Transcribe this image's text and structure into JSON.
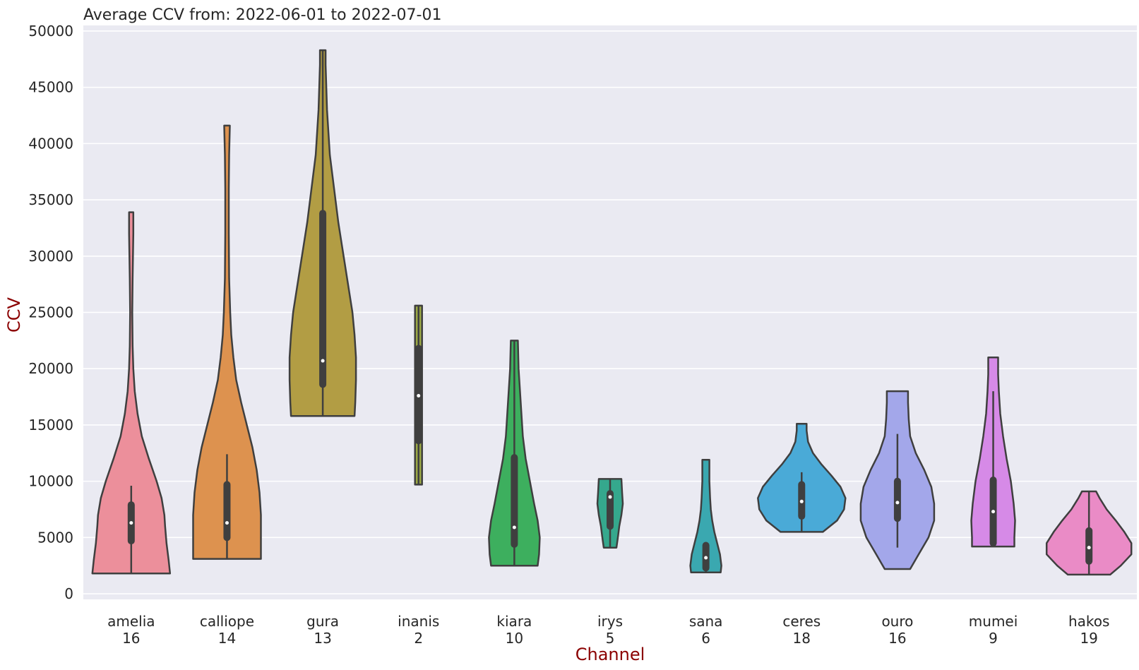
{
  "chart_data": {
    "type": "violin",
    "title": "Average CCV from: 2022-06-01 to 2022-07-01",
    "xlabel": "Channel",
    "ylabel": "CCV",
    "ylim": [
      -500,
      50500
    ],
    "yticks": [
      0,
      5000,
      10000,
      15000,
      20000,
      25000,
      30000,
      35000,
      40000,
      45000,
      50000
    ],
    "grid": true,
    "axis_label_color": "#8b0000",
    "background": "#eaeaf2",
    "violins": [
      {
        "name": "amelia",
        "count": "16",
        "color": "#ec8f9b",
        "min": 1800,
        "q1": 4700,
        "median": 6300,
        "q3": 7900,
        "whisker_low": 1800,
        "whisker_high": 9600,
        "max": 33900,
        "profile": [
          [
            1800,
            55
          ],
          [
            3000,
            53
          ],
          [
            4500,
            50
          ],
          [
            6000,
            48
          ],
          [
            7000,
            47
          ],
          [
            8500,
            43
          ],
          [
            10000,
            36
          ],
          [
            12000,
            25
          ],
          [
            14000,
            15
          ],
          [
            16000,
            9
          ],
          [
            18000,
            5
          ],
          [
            20000,
            3
          ],
          [
            22000,
            2
          ],
          [
            25000,
            1.5
          ],
          [
            28000,
            2
          ],
          [
            30000,
            2.5
          ],
          [
            32000,
            3
          ],
          [
            33900,
            3
          ]
        ]
      },
      {
        "name": "calliope",
        "count": "14",
        "color": "#dd924f",
        "min": 3100,
        "q1": 5000,
        "median": 6300,
        "q3": 9700,
        "whisker_low": 3100,
        "whisker_high": 12400,
        "max": 41600,
        "profile": [
          [
            3100,
            48
          ],
          [
            5000,
            48
          ],
          [
            7000,
            48
          ],
          [
            9000,
            46
          ],
          [
            11000,
            42
          ],
          [
            13000,
            36
          ],
          [
            15000,
            28
          ],
          [
            17000,
            20
          ],
          [
            19000,
            13
          ],
          [
            21000,
            9
          ],
          [
            23000,
            6
          ],
          [
            25000,
            4.5
          ],
          [
            28000,
            3
          ],
          [
            32000,
            2.5
          ],
          [
            36000,
            2.5
          ],
          [
            39000,
            3
          ],
          [
            41600,
            4
          ]
        ]
      },
      {
        "name": "gura",
        "count": "13",
        "color": "#b29d44",
        "min": 15800,
        "q1": 18600,
        "median": 20700,
        "q3": 33800,
        "whisker_low": 15800,
        "whisker_high": 48300,
        "max": 48300,
        "profile": [
          [
            15800,
            45
          ],
          [
            17000,
            46
          ],
          [
            19000,
            47
          ],
          [
            21000,
            47
          ],
          [
            23000,
            45
          ],
          [
            25000,
            42
          ],
          [
            27000,
            37
          ],
          [
            29000,
            32
          ],
          [
            31000,
            27
          ],
          [
            33000,
            22
          ],
          [
            35000,
            18
          ],
          [
            37000,
            14
          ],
          [
            39000,
            10
          ],
          [
            41000,
            8
          ],
          [
            43000,
            6
          ],
          [
            45000,
            5
          ],
          [
            47000,
            4
          ],
          [
            48300,
            4
          ]
        ]
      },
      {
        "name": "inanis",
        "count": "2",
        "color": "#9ba845",
        "min": 9700,
        "q1": 13600,
        "median": 17600,
        "q3": 21800,
        "whisker_low": 9700,
        "whisker_high": 25600,
        "max": 25600,
        "profile": [
          [
            9700,
            5
          ],
          [
            12000,
            5
          ],
          [
            15000,
            5
          ],
          [
            18000,
            5
          ],
          [
            21000,
            5
          ],
          [
            24000,
            5
          ],
          [
            25600,
            5
          ]
        ]
      },
      {
        "name": "kiara",
        "count": "10",
        "color": "#3daf5e",
        "min": 2500,
        "q1": 4400,
        "median": 5900,
        "q3": 12100,
        "whisker_low": 2500,
        "whisker_high": 22500,
        "max": 22500,
        "profile": [
          [
            2500,
            33
          ],
          [
            3500,
            35
          ],
          [
            5000,
            36
          ],
          [
            6500,
            33
          ],
          [
            8000,
            28
          ],
          [
            10000,
            22
          ],
          [
            12000,
            16
          ],
          [
            14000,
            12
          ],
          [
            16000,
            10
          ],
          [
            18000,
            8
          ],
          [
            20000,
            6
          ],
          [
            22500,
            5
          ]
        ]
      },
      {
        "name": "irys",
        "count": "5",
        "color": "#35a88d",
        "min": 4100,
        "q1": 6000,
        "median": 8600,
        "q3": 8900,
        "whisker_low": 4100,
        "whisker_high": 10200,
        "max": 10200,
        "profile": [
          [
            4100,
            9
          ],
          [
            5000,
            11
          ],
          [
            6000,
            13
          ],
          [
            7000,
            16
          ],
          [
            8000,
            18
          ],
          [
            9000,
            17
          ],
          [
            10200,
            16
          ]
        ]
      },
      {
        "name": "sana",
        "count": "6",
        "color": "#3aa8b0",
        "min": 1900,
        "q1": 2300,
        "median": 3200,
        "q3": 4300,
        "whisker_low": 1900,
        "whisker_high": 4300,
        "max": 11900,
        "profile": [
          [
            1900,
            21
          ],
          [
            2500,
            22
          ],
          [
            3500,
            20
          ],
          [
            4500,
            16
          ],
          [
            5500,
            12
          ],
          [
            6500,
            9
          ],
          [
            7500,
            7
          ],
          [
            8500,
            6
          ],
          [
            10000,
            5
          ],
          [
            11900,
            5
          ]
        ]
      },
      {
        "name": "ceres",
        "count": "18",
        "color": "#4aaad7",
        "min": 5500,
        "q1": 6900,
        "median": 8200,
        "q3": 9700,
        "whisker_low": 5500,
        "whisker_high": 10800,
        "max": 15100,
        "profile": [
          [
            5500,
            30
          ],
          [
            6500,
            50
          ],
          [
            7500,
            60
          ],
          [
            8500,
            62
          ],
          [
            9500,
            55
          ],
          [
            10500,
            42
          ],
          [
            11500,
            28
          ],
          [
            12500,
            16
          ],
          [
            13500,
            9
          ],
          [
            14500,
            7
          ],
          [
            15100,
            7
          ]
        ]
      },
      {
        "name": "ouro",
        "count": "16",
        "color": "#a3a7ea",
        "min": 2200,
        "q1": 6700,
        "median": 8100,
        "q3": 10000,
        "whisker_low": 4100,
        "whisker_high": 14200,
        "max": 18000,
        "profile": [
          [
            2200,
            18
          ],
          [
            3500,
            30
          ],
          [
            5000,
            44
          ],
          [
            6500,
            52
          ],
          [
            8000,
            52
          ],
          [
            9500,
            48
          ],
          [
            11000,
            38
          ],
          [
            12500,
            26
          ],
          [
            14000,
            18
          ],
          [
            15500,
            16
          ],
          [
            17000,
            15
          ],
          [
            18000,
            15
          ]
        ]
      },
      {
        "name": "mumei",
        "count": "9",
        "color": "#d68ae7",
        "min": 4200,
        "q1": 4500,
        "median": 7300,
        "q3": 10100,
        "whisker_low": 4200,
        "whisker_high": 18000,
        "max": 21000,
        "profile": [
          [
            4200,
            30
          ],
          [
            5000,
            30
          ],
          [
            6500,
            31
          ],
          [
            8000,
            29
          ],
          [
            10000,
            25
          ],
          [
            12000,
            19
          ],
          [
            14000,
            14
          ],
          [
            16000,
            10
          ],
          [
            18000,
            8
          ],
          [
            19500,
            7
          ],
          [
            21000,
            7
          ]
        ]
      },
      {
        "name": "hakos",
        "count": "19",
        "color": "#ea8bc6",
        "min": 1700,
        "q1": 2900,
        "median": 4100,
        "q3": 5600,
        "whisker_low": 1700,
        "whisker_high": 9100,
        "max": 9100,
        "profile": [
          [
            1700,
            30
          ],
          [
            2500,
            45
          ],
          [
            3500,
            60
          ],
          [
            4500,
            60
          ],
          [
            5500,
            50
          ],
          [
            6500,
            38
          ],
          [
            7500,
            25
          ],
          [
            8500,
            15
          ],
          [
            9100,
            10
          ]
        ]
      }
    ]
  }
}
